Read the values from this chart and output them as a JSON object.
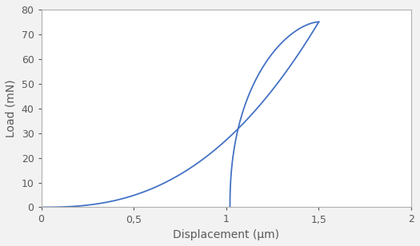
{
  "xlabel": "Displacement (μm)",
  "ylabel": "Load (mN)",
  "xlim": [
    0,
    2
  ],
  "ylim": [
    0,
    80
  ],
  "xticks": [
    0,
    0.5,
    1.0,
    1.5,
    2.0
  ],
  "xtick_labels": [
    "0",
    "0,5",
    "1",
    "1,5",
    "2"
  ],
  "yticks": [
    0,
    10,
    20,
    30,
    40,
    50,
    60,
    70,
    80
  ],
  "line_color": "#4472C4",
  "line_width": 1.3,
  "background_color": "#f2f2f2",
  "plot_bg_color": "#ffffff",
  "label_fontsize": 10,
  "tick_fontsize": 9,
  "label_color": "#595959"
}
